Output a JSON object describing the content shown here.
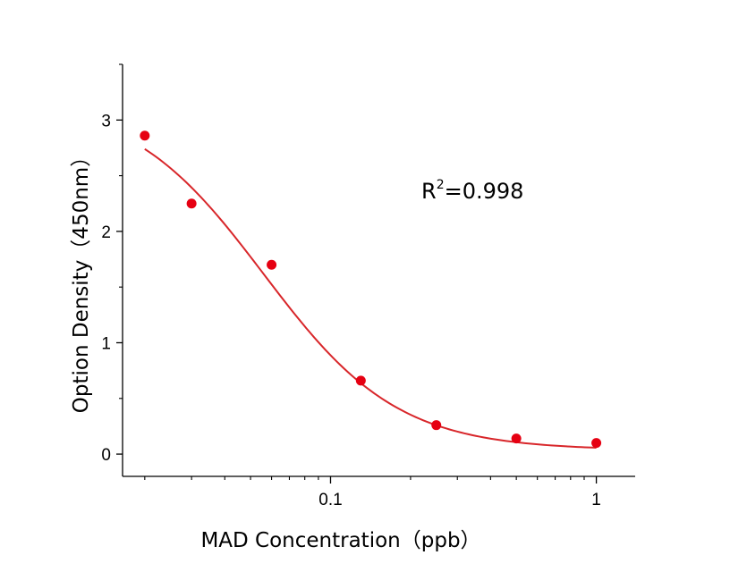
{
  "chart_data": {
    "type": "scatter",
    "title": "",
    "xlabel": "MAD  Concentration（ppb）",
    "ylabel": "Option Density（450nm）",
    "x_scale": "log",
    "xlim": [
      0.0165,
      1.4
    ],
    "ylim": [
      -0.2,
      3.5
    ],
    "x_ticks": [
      {
        "value": 0.1,
        "label": "0.1"
      },
      {
        "value": 1,
        "label": "1"
      }
    ],
    "y_ticks": [
      {
        "value": 0,
        "label": "0"
      },
      {
        "value": 1,
        "label": "1"
      },
      {
        "value": 2,
        "label": "2"
      },
      {
        "value": 3,
        "label": "3"
      }
    ],
    "grid": false,
    "legend": "none",
    "colors": {
      "points": "#e60012",
      "fit": "#d8262a",
      "axis": "#000000"
    },
    "series": [
      {
        "kind": "points",
        "x": [
          0.02,
          0.03,
          0.06,
          0.13,
          0.25,
          0.5,
          1
        ],
        "y": [
          2.86,
          2.25,
          1.7,
          0.66,
          0.26,
          0.14,
          0.1
        ]
      },
      {
        "kind": "fit",
        "model": "four-parameter logistic",
        "top": 3.2,
        "bottom": 0.035,
        "ec50": 0.056,
        "hill": 1.72,
        "x_range": [
          0.02,
          1
        ]
      }
    ],
    "annotation": {
      "base": "R",
      "sup": "2",
      "rest": "=0.998"
    }
  }
}
